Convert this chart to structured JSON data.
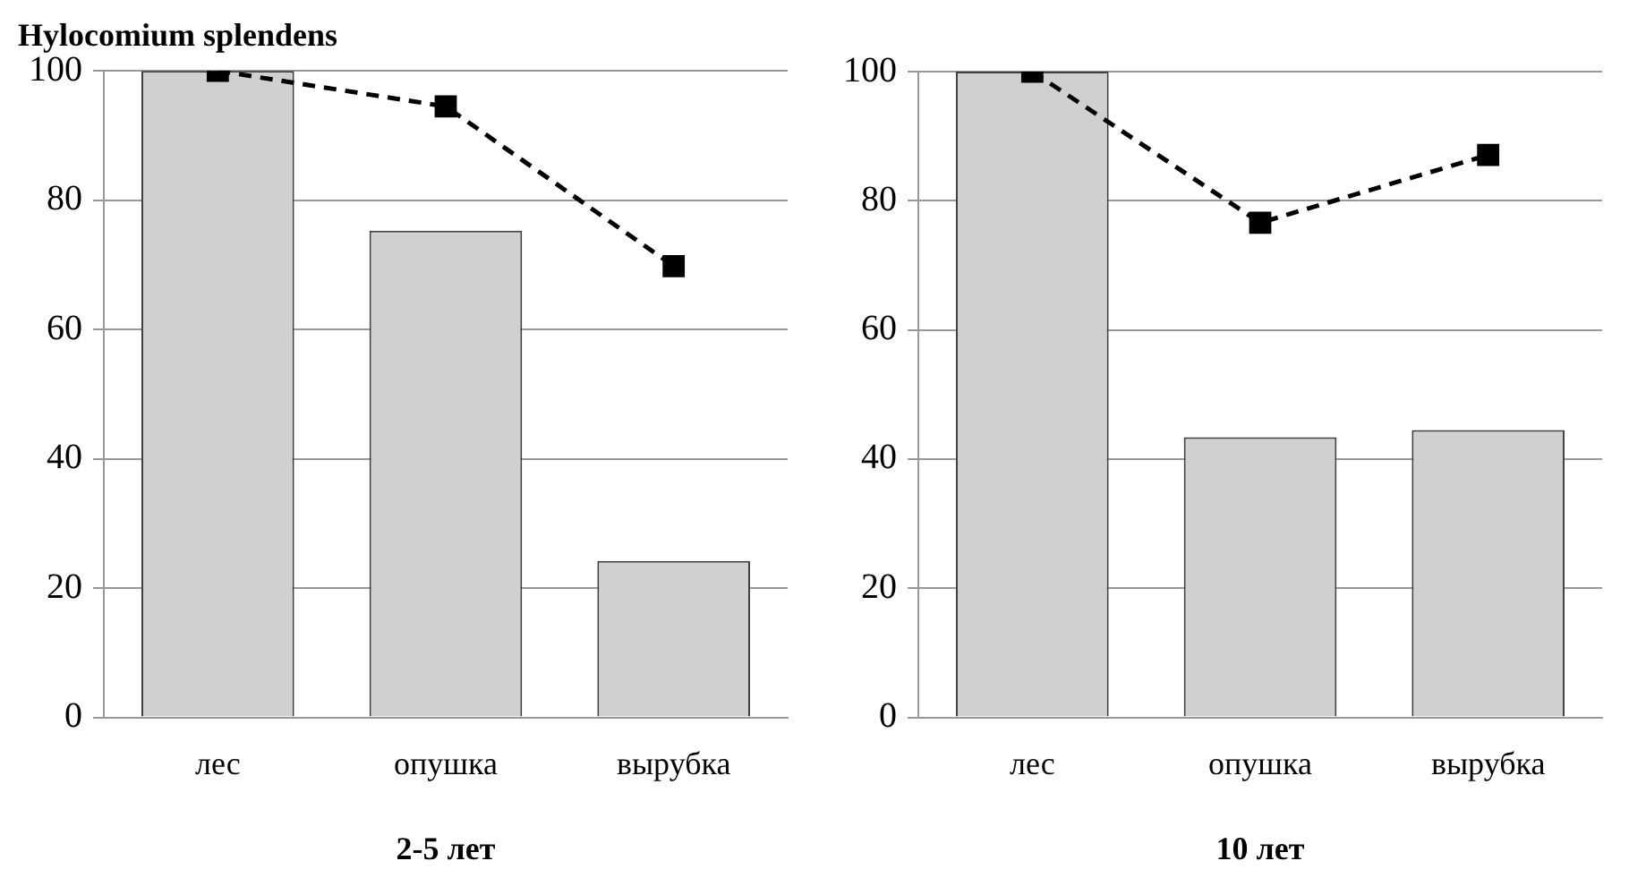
{
  "chart_data": [
    {
      "type": "bar",
      "title": "Hylocomium splendens",
      "xlabel": "2-5 лет",
      "categories": [
        "лес",
        "опушка",
        "вырубка"
      ],
      "ylim": [
        0,
        100
      ],
      "yticks": [
        0,
        20,
        40,
        60,
        80,
        100
      ],
      "grid": "y",
      "legend": false,
      "series": [
        {
          "color": "#d0d0d0",
          "values": [
            100,
            75.3,
            24.2
          ]
        },
        {
          "type": "line",
          "color": "#000000",
          "values": [
            100,
            94.5,
            69.8
          ],
          "marker": "square",
          "line_style": "dashed"
        }
      ]
    },
    {
      "type": "bar",
      "xlabel": "10 лет",
      "categories": [
        "лес",
        "опушка",
        "вырубка"
      ],
      "ylim": [
        0,
        100
      ],
      "yticks": [
        0,
        20,
        40,
        60,
        80,
        100
      ],
      "grid": "y",
      "legend": false,
      "series": [
        {
          "color": "#d0d0d0",
          "values": [
            100,
            43.4,
            44.5
          ]
        },
        {
          "type": "line",
          "color": "#000000",
          "values": [
            100,
            76.6,
            87.1
          ],
          "marker": "square",
          "line_style": "dashed"
        }
      ]
    }
  ]
}
